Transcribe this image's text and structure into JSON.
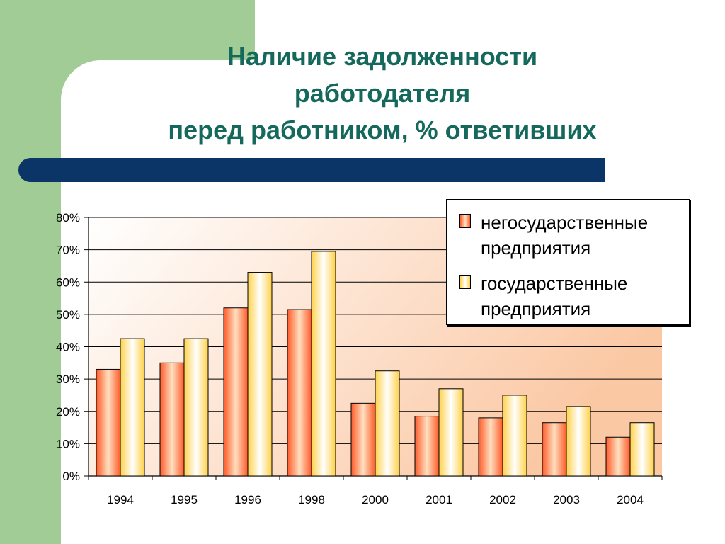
{
  "slide": {
    "title_lines": [
      "Наличие задолженности",
      "работодателя",
      "перед работником, % ответивших"
    ]
  },
  "colors": {
    "stripe": "#a2cc96",
    "title_text": "#15695c",
    "title_bar": "#0b3566",
    "series_nonstate_center": "#ffe0c0",
    "series_nonstate_edge": "#ff5a2a",
    "series_state_center": "#ffffff",
    "series_state_edge": "#ffd24a"
  },
  "chart_data": {
    "type": "bar",
    "categories": [
      "1994",
      "1995",
      "1996",
      "1998",
      "2000",
      "2001",
      "2002",
      "2003",
      "2004"
    ],
    "series": [
      {
        "name": "негосударственные предприятия",
        "values": [
          33,
          35,
          52,
          51.5,
          22.5,
          18.5,
          18,
          16.5,
          12
        ]
      },
      {
        "name": "государственные предприятия",
        "values": [
          42.5,
          42.5,
          63,
          69.5,
          32.5,
          27,
          25,
          21.5,
          16.5
        ]
      }
    ],
    "ylim": [
      0,
      80
    ],
    "yticks": [
      "0%",
      "10%",
      "20%",
      "30%",
      "40%",
      "50%",
      "60%",
      "70%",
      "80%"
    ],
    "grid": true,
    "legend_position": "top-right",
    "title": "",
    "xlabel": "",
    "ylabel": ""
  }
}
